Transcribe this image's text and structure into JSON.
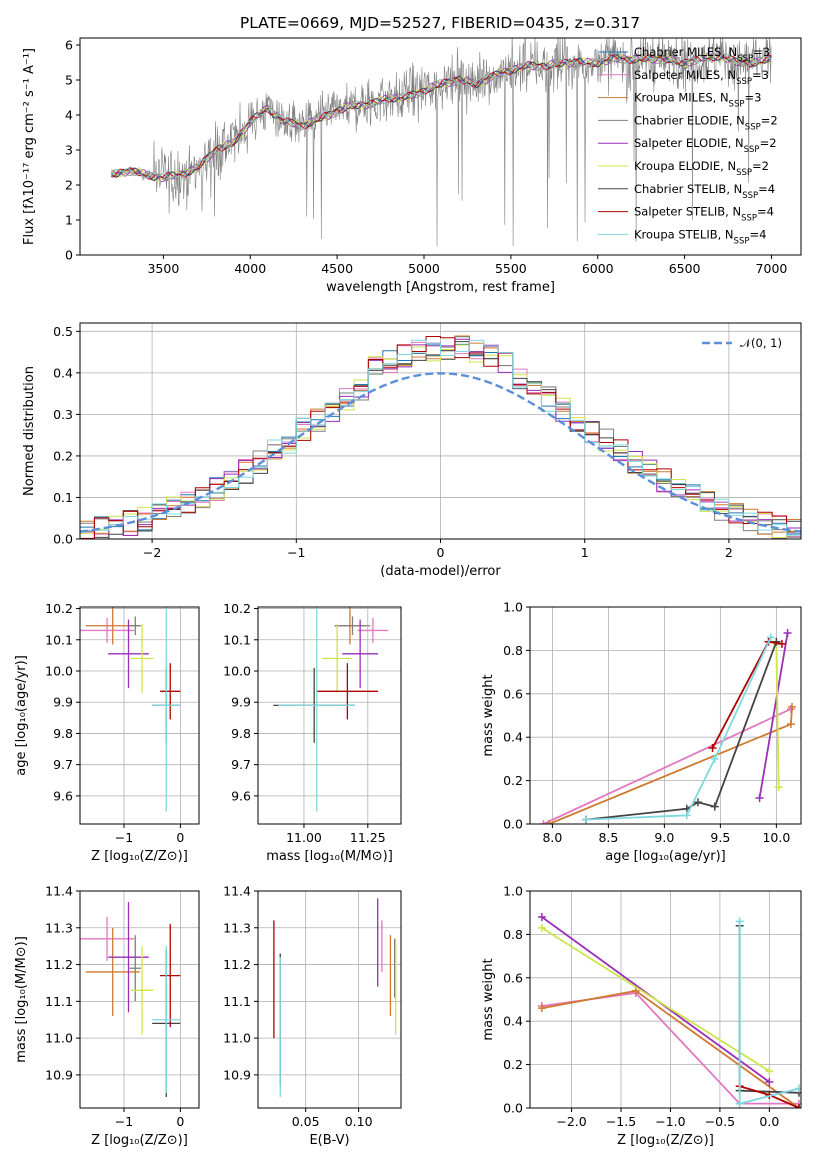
{
  "title": "PLATE=0669, MJD=52527, FIBERID=0435, z=0.317",
  "colors": {
    "Chabrier MILES": "#1f77b4",
    "Salpeter MILES": "#e377c2",
    "Kroupa MILES": "#d07a30",
    "Chabrier ELODIE": "#7f7f7f",
    "Salpeter ELODIE": "#9a2fb8",
    "Kroupa ELODIE": "#cfe34a",
    "Chabrier STELIB": "#444444",
    "Salpeter STELIB": "#b00000",
    "Kroupa STELIB": "#7fd8e0",
    "data": "#808080",
    "normal": "#5b8fd9"
  },
  "legend": {
    "models": [
      {
        "name": "Chabrier MILES",
        "nssp": "3"
      },
      {
        "name": "Salpeter MILES",
        "nssp": "3"
      },
      {
        "name": "Kroupa MILES",
        "nssp": "3"
      },
      {
        "name": "Chabrier ELODIE",
        "nssp": "2"
      },
      {
        "name": "Salpeter ELODIE",
        "nssp": "2"
      },
      {
        "name": "Kroupa ELODIE",
        "nssp": "2"
      },
      {
        "name": "Chabrier STELIB",
        "nssp": "4"
      },
      {
        "name": "Salpeter STELIB",
        "nssp": "4"
      },
      {
        "name": "Kroupa STELIB",
        "nssp": "4"
      }
    ],
    "nssp_prefix": "N",
    "nssp_sub": "SSP",
    "normal_label": "𝒩(0, 1)"
  },
  "chart_data": [
    {
      "id": "spectrum",
      "type": "line",
      "xlabel": "wavelength [Angstrom, rest frame]",
      "ylabel": "Flux [fλ10⁻¹⁷ erg cm⁻² s⁻¹ A⁻¹]",
      "xlim": [
        3020,
        7170
      ],
      "ylim": [
        0,
        6.2
      ],
      "xticks": [
        3500,
        4000,
        4500,
        5000,
        5500,
        6000,
        6500,
        7000
      ],
      "yticks": [
        0,
        1,
        2,
        3,
        4,
        5,
        6
      ],
      "continuum": {
        "x": [
          3200,
          3300,
          3400,
          3500,
          3600,
          3700,
          3800,
          3900,
          4000,
          4100,
          4200,
          4300,
          4400,
          4500,
          4600,
          4700,
          4800,
          4900,
          5000,
          5100,
          5200,
          5300,
          5400,
          5500,
          5600,
          5700,
          5800,
          5900,
          6000,
          6100,
          6200,
          6300,
          6400,
          6500,
          6600,
          6700,
          6800,
          6900,
          7000
        ],
        "y": [
          2.3,
          2.4,
          2.3,
          2.2,
          2.3,
          2.5,
          3.0,
          3.2,
          3.8,
          4.2,
          3.8,
          3.7,
          3.9,
          4.1,
          4.3,
          4.3,
          4.5,
          4.5,
          4.7,
          4.9,
          5.0,
          4.9,
          5.1,
          5.3,
          5.4,
          5.4,
          5.5,
          5.5,
          5.5,
          5.6,
          5.6,
          5.6,
          5.6,
          5.5,
          5.6,
          5.7,
          5.5,
          5.5,
          5.6
        ]
      },
      "note_data": "observed spectrum noisy around continuum"
    },
    {
      "id": "residuals",
      "type": "histogram",
      "xlabel": "(data-model)/error",
      "ylabel": "Normed distribution",
      "xlim": [
        -2.5,
        2.5
      ],
      "ylim": [
        0,
        0.52
      ],
      "xticks": [
        -2,
        -1,
        0,
        1,
        2
      ],
      "yticks": [
        0.0,
        0.1,
        0.2,
        0.3,
        0.4,
        0.5
      ],
      "bin_width": 0.1
    },
    {
      "id": "age_vs_Z",
      "type": "scatter",
      "xlabel": "Z [log₁₀(Z/Z⊙)]",
      "ylabel": "age  [log₁₀(age/yr)]",
      "xlim": [
        -1.78,
        0.33
      ],
      "ylim": [
        9.51,
        10.205
      ],
      "xticks": [
        -1,
        0
      ],
      "yticks": [
        9.6,
        9.7,
        9.8,
        9.9,
        10.0,
        10.1,
        10.2
      ],
      "points": [
        {
          "model": "Salpeter MILES",
          "x": -1.3,
          "y": 10.13,
          "xe": 0.48,
          "ye": 0.04
        },
        {
          "model": "Kroupa MILES",
          "x": -1.2,
          "y": 10.145,
          "xe": 0.48,
          "ye": 0.06
        },
        {
          "model": "Chabrier ELODIE",
          "x": -0.8,
          "y": 10.145,
          "xe": 0.1,
          "ye": 0.03
        },
        {
          "model": "Salpeter ELODIE",
          "x": -0.92,
          "y": 10.055,
          "xe": 0.36,
          "ye": 0.11
        },
        {
          "model": "Kroupa ELODIE",
          "x": -0.68,
          "y": 10.04,
          "xe": 0.2,
          "ye": 0.11
        },
        {
          "model": "Chabrier STELIB",
          "x": -0.25,
          "y": 9.89,
          "xe": 0.25,
          "ye": 0.12
        },
        {
          "model": "Salpeter STELIB",
          "x": -0.18,
          "y": 9.935,
          "xe": 0.18,
          "ye": 0.09
        },
        {
          "model": "Kroupa STELIB",
          "x": -0.25,
          "y": 9.89,
          "xe": 0.25,
          "ye": 0.34
        }
      ]
    },
    {
      "id": "age_vs_mass",
      "type": "scatter",
      "xlabel": "mass [log₁₀(M/M⊙)]",
      "ylabel": "",
      "xlim": [
        10.82,
        11.38
      ],
      "ylim": [
        9.51,
        10.205
      ],
      "xticks": [
        11.0,
        11.25
      ],
      "yticks": [
        9.6,
        9.7,
        9.8,
        9.9,
        10.0,
        10.1,
        10.2
      ],
      "points": [
        {
          "model": "Salpeter MILES",
          "x": 11.27,
          "y": 10.13,
          "xe": 0.06,
          "ye": 0.04
        },
        {
          "model": "Kroupa MILES",
          "x": 11.18,
          "y": 10.145,
          "xe": 0.06,
          "ye": 0.06
        },
        {
          "model": "Chabrier ELODIE",
          "x": 11.19,
          "y": 10.145,
          "xe": 0.07,
          "ye": 0.03
        },
        {
          "model": "Salpeter ELODIE",
          "x": 11.22,
          "y": 10.055,
          "xe": 0.07,
          "ye": 0.11
        },
        {
          "model": "Kroupa ELODIE",
          "x": 11.13,
          "y": 10.04,
          "xe": 0.06,
          "ye": 0.11
        },
        {
          "model": "Chabrier STELIB",
          "x": 11.04,
          "y": 9.89,
          "xe": 0.16,
          "ye": 0.12
        },
        {
          "model": "Salpeter STELIB",
          "x": 11.17,
          "y": 9.935,
          "xe": 0.12,
          "ye": 0.09
        },
        {
          "model": "Kroupa STELIB",
          "x": 11.05,
          "y": 9.89,
          "xe": 0.15,
          "ye": 0.34
        }
      ]
    },
    {
      "id": "weight_vs_age",
      "type": "line",
      "xlabel": "age  [log₁₀(age/yr)]",
      "ylabel": "mass weight",
      "xlim": [
        7.8,
        10.22
      ],
      "ylim": [
        0,
        1.0
      ],
      "xticks": [
        8.0,
        8.5,
        9.0,
        9.5,
        10.0
      ],
      "yticks": [
        0.0,
        0.2,
        0.4,
        0.6,
        0.8,
        1.0
      ],
      "series": [
        {
          "model": "Salpeter MILES",
          "x": [
            7.92,
            10.13
          ],
          "y": [
            0.0,
            0.53
          ]
        },
        {
          "model": "Kroupa MILES",
          "x": [
            7.97,
            10.13,
            10.14
          ],
          "y": [
            0.0,
            0.46,
            0.54
          ]
        },
        {
          "model": "Salpeter ELODIE",
          "x": [
            9.85,
            10.1
          ],
          "y": [
            0.12,
            0.88
          ]
        },
        {
          "model": "Kroupa ELODIE",
          "x": [
            10.0,
            10.02
          ],
          "y": [
            0.83,
            0.17
          ]
        },
        {
          "model": "Chabrier STELIB",
          "x": [
            8.3,
            9.2,
            9.3,
            9.45,
            10.0
          ],
          "y": [
            0.02,
            0.07,
            0.1,
            0.08,
            0.84
          ]
        },
        {
          "model": "Salpeter STELIB",
          "x": [
            9.43,
            9.93,
            10.05
          ],
          "y": [
            0.35,
            0.84,
            0.83
          ]
        },
        {
          "model": "Kroupa STELIB",
          "x": [
            8.3,
            9.2,
            9.45,
            9.95
          ],
          "y": [
            0.02,
            0.04,
            0.3,
            0.86
          ]
        }
      ]
    },
    {
      "id": "mass_vs_Z",
      "type": "scatter",
      "xlabel": "Z [log₁₀(Z/Z⊙)]",
      "ylabel": "mass [log₁₀(M/M⊙)]",
      "xlim": [
        -1.78,
        0.33
      ],
      "ylim": [
        10.81,
        11.4
      ],
      "xticks": [
        -1,
        0
      ],
      "yticks": [
        10.9,
        11.0,
        11.1,
        11.2,
        11.3,
        11.4
      ],
      "points": [
        {
          "model": "Salpeter MILES",
          "x": -1.3,
          "y": 11.27,
          "xe": 0.48,
          "ye": 0.06
        },
        {
          "model": "Kroupa MILES",
          "x": -1.2,
          "y": 11.18,
          "xe": 0.48,
          "ye": 0.12
        },
        {
          "model": "Chabrier ELODIE",
          "x": -0.8,
          "y": 11.19,
          "xe": 0.1,
          "ye": 0.09
        },
        {
          "model": "Salpeter ELODIE",
          "x": -0.92,
          "y": 11.22,
          "xe": 0.36,
          "ye": 0.15
        },
        {
          "model": "Kroupa ELODIE",
          "x": -0.68,
          "y": 11.13,
          "xe": 0.2,
          "ye": 0.12
        },
        {
          "model": "Chabrier STELIB",
          "x": -0.25,
          "y": 11.04,
          "xe": 0.25,
          "ye": 0.2
        },
        {
          "model": "Salpeter STELIB",
          "x": -0.18,
          "y": 11.17,
          "xe": 0.18,
          "ye": 0.14
        },
        {
          "model": "Kroupa STELIB",
          "x": -0.25,
          "y": 11.05,
          "xe": 0.25,
          "ye": 0.2
        }
      ]
    },
    {
      "id": "mass_vs_EBV",
      "type": "scatter",
      "xlabel": "E(B-V)",
      "ylabel": "",
      "xlim": [
        0.005,
        0.14
      ],
      "ylim": [
        10.81,
        11.4
      ],
      "xticks": [
        0.05,
        0.1
      ],
      "yticks": [
        10.9,
        11.0,
        11.1,
        11.2,
        11.3,
        11.4
      ],
      "points": [
        {
          "model": "Salpeter STELIB",
          "x": 0.02,
          "y": 11.16,
          "xe": 0,
          "ye": 0.16
        },
        {
          "model": "Chabrier STELIB",
          "x": 0.026,
          "y": 11.05,
          "xe": 0,
          "ye": 0.18
        },
        {
          "model": "Kroupa STELIB",
          "x": 0.026,
          "y": 11.03,
          "xe": 0,
          "ye": 0.19
        },
        {
          "model": "Salpeter ELODIE",
          "x": 0.118,
          "y": 11.26,
          "xe": 0,
          "ye": 0.12
        },
        {
          "model": "Salpeter MILES",
          "x": 0.122,
          "y": 11.25,
          "xe": 0,
          "ye": 0.07
        },
        {
          "model": "Kroupa MILES",
          "x": 0.13,
          "y": 11.17,
          "xe": 0,
          "ye": 0.11
        },
        {
          "model": "Chabrier ELODIE",
          "x": 0.134,
          "y": 11.19,
          "xe": 0,
          "ye": 0.08
        },
        {
          "model": "Kroupa ELODIE",
          "x": 0.135,
          "y": 11.14,
          "xe": 0,
          "ye": 0.13
        }
      ]
    },
    {
      "id": "weight_vs_Z",
      "type": "line",
      "xlabel": "Z [log₁₀(Z/Z⊙)]",
      "ylabel": "mass weight",
      "xlim": [
        -2.42,
        0.32
      ],
      "ylim": [
        0,
        1.0
      ],
      "xticks": [
        -2.0,
        -1.5,
        -1.0,
        -0.5,
        0.0
      ],
      "yticks": [
        0.0,
        0.2,
        0.4,
        0.6,
        0.8,
        1.0
      ],
      "series": [
        {
          "model": "Salpeter MILES",
          "x": [
            -2.3,
            -1.35,
            -0.3,
            0.3
          ],
          "y": [
            0.47,
            0.53,
            0.02,
            0.02
          ]
        },
        {
          "model": "Kroupa MILES",
          "x": [
            -2.3,
            -1.35,
            0.3
          ],
          "y": [
            0.46,
            0.54,
            0.0
          ]
        },
        {
          "model": "Salpeter ELODIE",
          "x": [
            -2.3,
            0.0
          ],
          "y": [
            0.88,
            0.12
          ]
        },
        {
          "model": "Kroupa ELODIE",
          "x": [
            -2.3,
            0.0
          ],
          "y": [
            0.83,
            0.17
          ]
        },
        {
          "model": "Chabrier STELIB",
          "x": [
            -0.3,
            -0.3,
            0.3
          ],
          "y": [
            0.84,
            0.08,
            0.07
          ]
        },
        {
          "model": "Salpeter STELIB",
          "x": [
            -0.3,
            0.0,
            0.3
          ],
          "y": [
            0.1,
            0.06,
            0.0
          ]
        },
        {
          "model": "Kroupa STELIB",
          "x": [
            -0.3,
            -0.3,
            0.3
          ],
          "y": [
            0.86,
            0.02,
            0.09
          ]
        }
      ]
    }
  ]
}
